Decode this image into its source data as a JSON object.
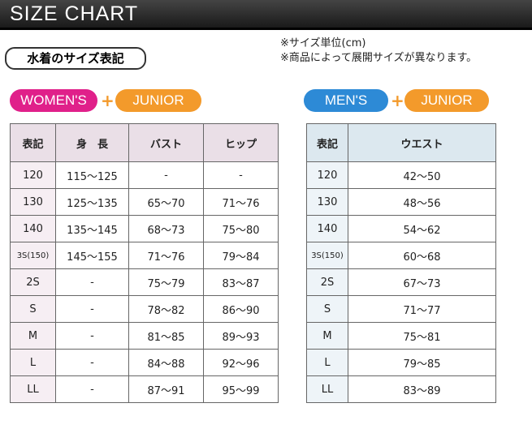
{
  "header": {
    "title": "SIZE CHART"
  },
  "subtitle": "水着のサイズ表記",
  "notes": [
    "※サイズ単位(cm)",
    "※商品によって展開サイズが異なります。"
  ],
  "women": {
    "badge": "WOMEN'S",
    "plus": "+",
    "junior": "JUNIOR",
    "columns": [
      "表記",
      "身　長",
      "バスト",
      "ヒップ"
    ],
    "rows": [
      [
        "120",
        "115～125",
        "-",
        "-"
      ],
      [
        "130",
        "125～135",
        "65～70",
        "71～76"
      ],
      [
        "140",
        "135～145",
        "68～73",
        "75～80"
      ],
      [
        "3S(150)",
        "145～155",
        "71～76",
        "79～84"
      ],
      [
        "2S",
        "-",
        "75～79",
        "83～87"
      ],
      [
        "S",
        "-",
        "78～82",
        "86～90"
      ],
      [
        "M",
        "-",
        "81～85",
        "89～93"
      ],
      [
        "L",
        "-",
        "84～88",
        "92～96"
      ],
      [
        "LL",
        "-",
        "87～91",
        "95～99"
      ]
    ]
  },
  "men": {
    "badge": "MEN'S",
    "plus": "+",
    "junior": "JUNIOR",
    "columns": [
      "表記",
      "ウエスト"
    ],
    "rows": [
      [
        "120",
        "42～50"
      ],
      [
        "130",
        "48～56"
      ],
      [
        "140",
        "54～62"
      ],
      [
        "3S(150)",
        "60～68"
      ],
      [
        "2S",
        "67～73"
      ],
      [
        "S",
        "71～77"
      ],
      [
        "M",
        "75～81"
      ],
      [
        "L",
        "79～85"
      ],
      [
        "LL",
        "83～89"
      ]
    ]
  }
}
